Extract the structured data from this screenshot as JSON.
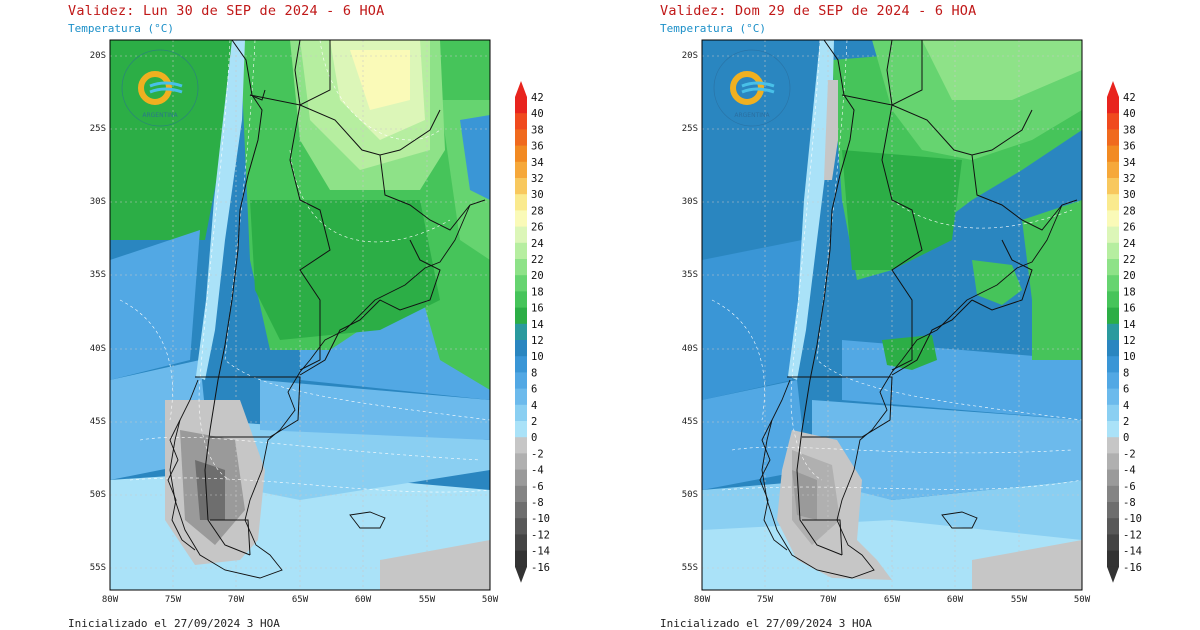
{
  "panels": [
    {
      "title": "Validez: Lun 30 de SEP de 2024 - 6 HOA",
      "subtitle": "Temperatura (°C)",
      "footer": "Inicializado el 27/09/2024 3 HOA",
      "logo_text": "ARGENTINA"
    },
    {
      "title": "Validez: Dom 29 de SEP de 2024 - 6 HOA",
      "subtitle": "Temperatura (°C)",
      "footer": "Inicializado el 27/09/2024 3 HOA",
      "logo_text": "ARGENTINA"
    }
  ],
  "latitude_labels": [
    "20S",
    "25S",
    "30S",
    "35S",
    "40S",
    "45S",
    "50S",
    "55S"
  ],
  "longitude_labels": [
    "80W",
    "75W",
    "70W",
    "65W",
    "60W",
    "55W",
    "50W"
  ],
  "colorbar": {
    "labels": [
      "42",
      "40",
      "38",
      "36",
      "34",
      "32",
      "30",
      "28",
      "26",
      "24",
      "22",
      "20",
      "18",
      "16",
      "14",
      "12",
      "10",
      "8",
      "6",
      "4",
      "2",
      "0",
      "-2",
      "-4",
      "-6",
      "-8",
      "-10",
      "-12",
      "-14",
      "-16"
    ],
    "colors": [
      "#e8241e",
      "#f04a1e",
      "#f06a1e",
      "#f28a22",
      "#f6a83a",
      "#f8c85e",
      "#faea8e",
      "#fafab8",
      "#dcf6b8",
      "#b6eea0",
      "#8ee288",
      "#66d470",
      "#46c45a",
      "#2cae46",
      "#2a9a9e",
      "#2a86c0",
      "#3a96d6",
      "#52a8e4",
      "#6cbaec",
      "#8acff2",
      "#aae2f8",
      "#c6c6c6",
      "#b0b0b0",
      "#9a9a9a",
      "#848484",
      "#6e6e6e",
      "#585858",
      "#444444",
      "#333333"
    ]
  }
}
